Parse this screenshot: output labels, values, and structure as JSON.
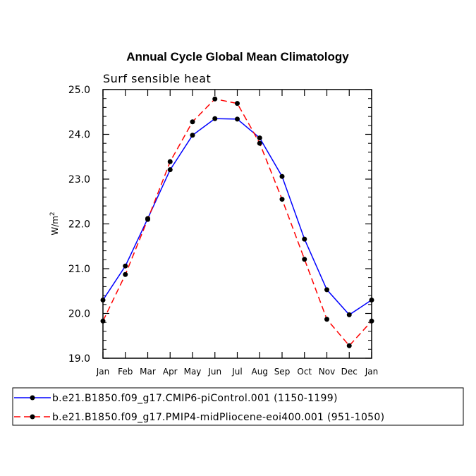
{
  "chart_data": {
    "type": "line",
    "title": "Annual Cycle Global Mean Climatology",
    "subtitle": "Surf sensible heat",
    "ylabel": "W/m",
    "ylabel_superscript": "2",
    "xlabel": "",
    "ylim": [
      19.0,
      25.0
    ],
    "y_ticks": [
      "19.0",
      "20.0",
      "21.0",
      "22.0",
      "23.0",
      "24.0",
      "25.0"
    ],
    "categories": [
      "Jan",
      "Feb",
      "Mar",
      "Apr",
      "May",
      "Jun",
      "Jul",
      "Aug",
      "Sep",
      "Oct",
      "Nov",
      "Dec",
      "Jan"
    ],
    "series": [
      {
        "name": "b.e21.B1850.f09_g17.CMIP6-piControl.001 (1150-1199)",
        "color": "#0000ff",
        "dash": "solid",
        "values": [
          20.3,
          21.06,
          22.12,
          23.21,
          23.98,
          24.35,
          24.34,
          23.92,
          23.06,
          21.66,
          20.53,
          19.97,
          20.3
        ]
      },
      {
        "name": "b.e21.B1850.f09_g17.PMIP4-midPliocene-eoi400.001 (951-1050)",
        "color": "#ff0000",
        "dash": "dashed",
        "values": [
          19.83,
          20.87,
          22.1,
          23.39,
          24.28,
          24.79,
          24.69,
          23.8,
          22.55,
          21.21,
          19.87,
          19.28,
          19.83
        ]
      }
    ]
  }
}
